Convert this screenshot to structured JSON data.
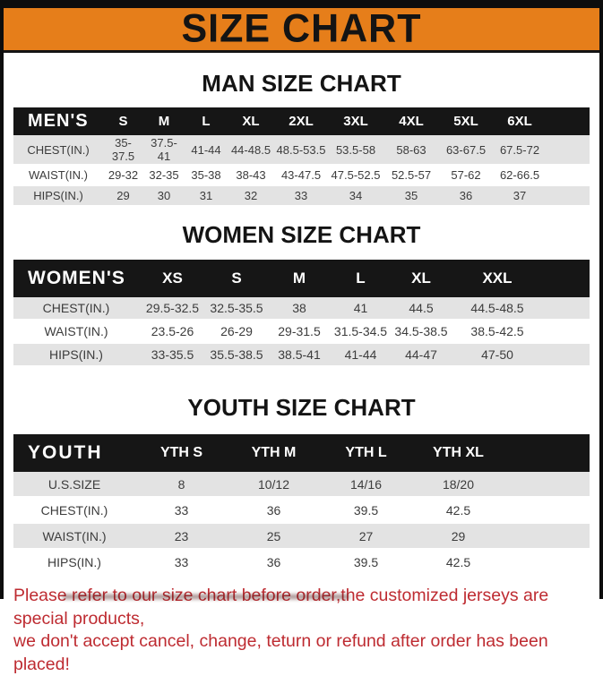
{
  "banner": {
    "title": "SIZE CHART"
  },
  "colors": {
    "banner_bg": "#E67E1A",
    "banner_text": "#141414",
    "table_header_bg": "#161616",
    "table_header_text": "#FFFFFF",
    "row_stripe": "#E3E3E3",
    "footer_text": "#BE2B31"
  },
  "sections": [
    {
      "title": "MAN SIZE CHART",
      "header": [
        "MEN'S",
        "S",
        "M",
        "L",
        "XL",
        "2XL",
        "3XL",
        "4XL",
        "5XL",
        "6XL"
      ],
      "rows": [
        [
          "CHEST(IN.)",
          "35-37.5",
          "37.5-41",
          "41-44",
          "44-48.5",
          "48.5-53.5",
          "53.5-58",
          "58-63",
          "63-67.5",
          "67.5-72"
        ],
        [
          "WAIST(IN.)",
          "29-32",
          "32-35",
          "35-38",
          "38-43",
          "43-47.5",
          "47.5-52.5",
          "52.5-57",
          "57-62",
          "62-66.5"
        ],
        [
          "HIPS(IN.)",
          "29",
          "30",
          "31",
          "32",
          "33",
          "34",
          "35",
          "36",
          "37"
        ]
      ]
    },
    {
      "title": "WOMEN SIZE CHART",
      "header": [
        "WOMEN'S",
        "XS",
        "S",
        "M",
        "L",
        "XL",
        "XXL"
      ],
      "rows": [
        [
          "CHEST(IN.)",
          "29.5-32.5",
          "32.5-35.5",
          "38",
          "41",
          "44.5",
          "44.5-48.5"
        ],
        [
          "WAIST(IN.)",
          "23.5-26",
          "26-29",
          "29-31.5",
          "31.5-34.5",
          "34.5-38.5",
          "38.5-42.5"
        ],
        [
          "HIPS(IN.)",
          "33-35.5",
          "35.5-38.5",
          "38.5-41",
          "41-44",
          "44-47",
          "47-50"
        ]
      ]
    },
    {
      "title": "YOUTH SIZE CHART",
      "header": [
        "YOUTH",
        "YTH S",
        "YTH M",
        "YTH L",
        "YTH XL"
      ],
      "rows": [
        [
          "U.S.SIZE",
          "8",
          "10/12",
          "14/16",
          "18/20"
        ],
        [
          "CHEST(IN.)",
          "33",
          "36",
          "39.5",
          "42.5"
        ],
        [
          "WAIST(IN.)",
          "23",
          "25",
          "27",
          "29"
        ],
        [
          "HIPS(IN.)",
          "33",
          "36",
          "39.5",
          "42.5"
        ]
      ]
    }
  ],
  "footer": {
    "line1": "Please refer to our size chart before order,the customized jerseys are special products,",
    "line2": "we don't accept cancel, change, teturn or refund after order has been placed!"
  }
}
